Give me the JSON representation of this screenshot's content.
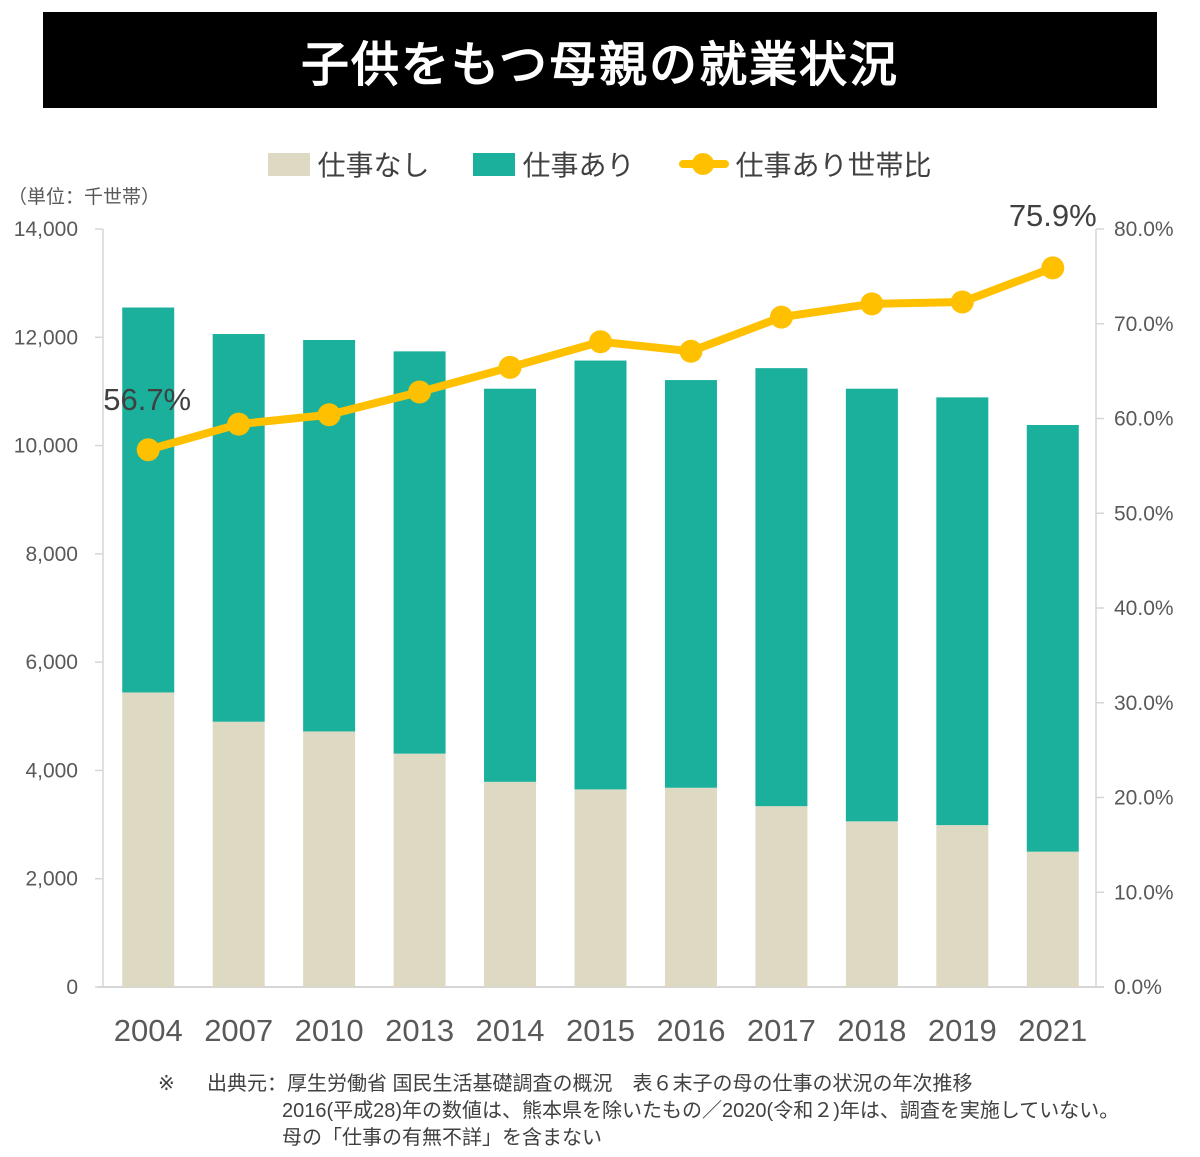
{
  "title": "子供をもつ母親の就業状況",
  "unit_label": "（単位：千世帯）",
  "legend": [
    {
      "label": "仕事なし",
      "color": "#DDD9C3",
      "marker": "square"
    },
    {
      "label": "仕事あり",
      "color": "#1AB09C",
      "marker": "square"
    },
    {
      "label": "仕事あり世帯比",
      "color": "#FFC000",
      "marker": "line-dot"
    }
  ],
  "annotations": {
    "first": "56.7%",
    "last": "75.9%"
  },
  "footnote": {
    "marker": "※",
    "source_label": "出典元：",
    "lines": [
      "厚生労働省 国民生活基礎調査の概況　表６末子の母の仕事の状況の年次推移",
      "2016(平成28)年の数値は、熊本県を除いたもの／2020(令和２)年は、調査を実施していない。",
      "母の「仕事の有無不詳」を含まない"
    ]
  },
  "chart_data": {
    "type": "combo-stacked-bar-line",
    "categories": [
      "2004",
      "2007",
      "2010",
      "2013",
      "2014",
      "2015",
      "2016",
      "2017",
      "2018",
      "2019",
      "2021"
    ],
    "series": [
      {
        "name": "仕事なし",
        "type": "bar",
        "stack": "households",
        "color": "#DDD9C3",
        "values": [
          5440,
          4900,
          4720,
          4310,
          3790,
          3650,
          3680,
          3340,
          3060,
          2990,
          2500
        ]
      },
      {
        "name": "仕事あり",
        "type": "bar",
        "stack": "households",
        "color": "#1AB09C",
        "values": [
          7110,
          7160,
          7230,
          7430,
          7260,
          7920,
          7530,
          8090,
          7990,
          7900,
          7880
        ]
      },
      {
        "name": "仕事あり世帯比",
        "type": "line",
        "axis": "right",
        "color": "#FFC000",
        "values": [
          56.7,
          59.4,
          60.4,
          62.8,
          65.4,
          68.1,
          67.1,
          70.7,
          72.1,
          72.3,
          75.9
        ]
      }
    ],
    "left_axis": {
      "unit": "千世帯",
      "min": 0,
      "max": 14000,
      "step": 2000,
      "tick_labels": [
        "0",
        "2,000",
        "4,000",
        "6,000",
        "8,000",
        "10,000",
        "12,000",
        "14,000"
      ]
    },
    "right_axis": {
      "unit": "%",
      "min": 0,
      "max": 80,
      "step": 10,
      "tick_labels": [
        "0.0%",
        "10.0%",
        "20.0%",
        "30.0%",
        "40.0%",
        "50.0%",
        "60.0%",
        "70.0%",
        "80.0%"
      ]
    },
    "grid": false,
    "legend_position": "top",
    "axis_text_color": "#595959",
    "annotation_text_color": "#404040",
    "axis_line_color": "#D6D6D6"
  }
}
